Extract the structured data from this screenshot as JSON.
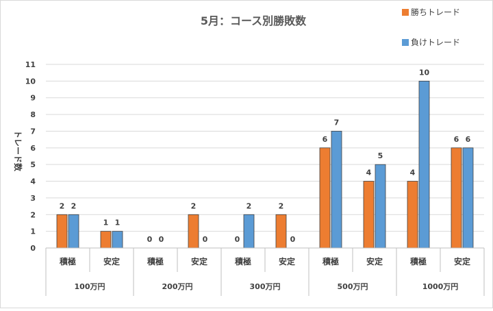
{
  "chart_data": {
    "type": "bar",
    "title": "5月：コース別勝敗数",
    "ylabel": "トレード数",
    "xlabel": "",
    "ylim": [
      0,
      11
    ],
    "yticks": [
      "0",
      "1",
      "2",
      "3",
      "4",
      "5",
      "6",
      "7",
      "8",
      "9",
      "10",
      "11"
    ],
    "groups": [
      "100万円",
      "200万円",
      "300万円",
      "500万円",
      "1000万円"
    ],
    "categories": [
      "積極",
      "安定",
      "積極",
      "安定",
      "積極",
      "安定",
      "積極",
      "安定",
      "積極",
      "安定"
    ],
    "series": [
      {
        "name": "勝ちトレード",
        "color": "#ED7D31",
        "values": [
          2,
          1,
          0,
          2,
          0,
          2,
          6,
          4,
          4,
          6
        ]
      },
      {
        "name": "負けトレード",
        "color": "#5B9BD5",
        "values": [
          2,
          1,
          0,
          0,
          2,
          0,
          7,
          5,
          10,
          6
        ]
      }
    ],
    "grid": true,
    "legend_position": "top-right"
  }
}
